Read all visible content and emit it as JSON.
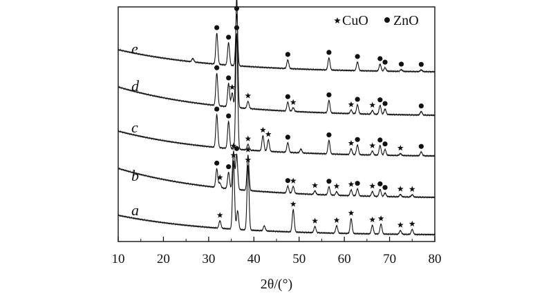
{
  "chart_data": {
    "type": "line",
    "title": "",
    "xlabel": "2θ/(°)",
    "ylabel": "",
    "xlim": [
      10,
      80
    ],
    "x_ticks": [
      10,
      20,
      30,
      40,
      50,
      60,
      70,
      80
    ],
    "grid": false,
    "y_axis_shown": false,
    "legend": {
      "placement": "top-right",
      "entries": [
        {
          "label": "CuO",
          "marker": "star"
        },
        {
          "label": "ZnO",
          "marker": "circle"
        }
      ]
    },
    "series_order_bottom_to_top": [
      "a",
      "b",
      "c",
      "d",
      "e"
    ],
    "series": [
      {
        "name": "a",
        "peaks": [
          {
            "x": 32.5,
            "h": 0.06
          },
          {
            "x": 35.5,
            "h": 0.55
          },
          {
            "x": 36.4,
            "h": 0.15
          },
          {
            "x": 38.7,
            "h": 0.52
          },
          {
            "x": 42.3,
            "h": 0.04
          },
          {
            "x": 48.7,
            "h": 0.18
          },
          {
            "x": 53.5,
            "h": 0.05
          },
          {
            "x": 58.3,
            "h": 0.06
          },
          {
            "x": 61.5,
            "h": 0.12
          },
          {
            "x": 66.2,
            "h": 0.07
          },
          {
            "x": 68.1,
            "h": 0.08
          },
          {
            "x": 72.4,
            "h": 0.03
          },
          {
            "x": 75.0,
            "h": 0.04
          }
        ],
        "markers": [
          {
            "x": 32.5,
            "type": "star"
          },
          {
            "x": 35.5,
            "type": "star"
          },
          {
            "x": 38.7,
            "type": "star"
          },
          {
            "x": 48.7,
            "type": "star"
          },
          {
            "x": 53.5,
            "type": "star"
          },
          {
            "x": 58.3,
            "type": "star"
          },
          {
            "x": 61.5,
            "type": "star"
          },
          {
            "x": 66.2,
            "type": "star"
          },
          {
            "x": 68.1,
            "type": "star"
          },
          {
            "x": 72.4,
            "type": "star"
          },
          {
            "x": 75.0,
            "type": "star"
          }
        ]
      },
      {
        "name": "b",
        "peaks": [
          {
            "x": 31.8,
            "h": 0.16
          },
          {
            "x": 32.5,
            "h": 0.04
          },
          {
            "x": 34.4,
            "h": 0.14
          },
          {
            "x": 35.5,
            "h": 0.32
          },
          {
            "x": 36.2,
            "h": 0.3
          },
          {
            "x": 38.7,
            "h": 0.3
          },
          {
            "x": 47.5,
            "h": 0.06
          },
          {
            "x": 48.7,
            "h": 0.06
          },
          {
            "x": 53.5,
            "h": 0.03
          },
          {
            "x": 56.6,
            "h": 0.07
          },
          {
            "x": 58.3,
            "h": 0.03
          },
          {
            "x": 61.5,
            "h": 0.05
          },
          {
            "x": 62.9,
            "h": 0.06
          },
          {
            "x": 66.2,
            "h": 0.04
          },
          {
            "x": 67.9,
            "h": 0.06
          },
          {
            "x": 69.0,
            "h": 0.03
          },
          {
            "x": 72.4,
            "h": 0.02
          },
          {
            "x": 75.0,
            "h": 0.02
          }
        ],
        "markers": [
          {
            "x": 31.8,
            "type": "circle"
          },
          {
            "x": 32.5,
            "type": "star"
          },
          {
            "x": 34.4,
            "type": "circle"
          },
          {
            "x": 35.5,
            "type": "star"
          },
          {
            "x": 36.2,
            "type": "circle"
          },
          {
            "x": 38.7,
            "type": "star"
          },
          {
            "x": 47.5,
            "type": "circle"
          },
          {
            "x": 48.7,
            "type": "star"
          },
          {
            "x": 53.5,
            "type": "star"
          },
          {
            "x": 56.6,
            "type": "circle"
          },
          {
            "x": 58.3,
            "type": "star"
          },
          {
            "x": 61.5,
            "type": "star"
          },
          {
            "x": 62.9,
            "type": "circle"
          },
          {
            "x": 66.2,
            "type": "star"
          },
          {
            "x": 67.9,
            "type": "circle"
          },
          {
            "x": 69.0,
            "type": "circle"
          },
          {
            "x": 72.4,
            "type": "star"
          },
          {
            "x": 75.0,
            "type": "star"
          }
        ]
      },
      {
        "name": "c",
        "peaks": [
          {
            "x": 31.8,
            "h": 0.17
          },
          {
            "x": 34.4,
            "h": 0.14
          },
          {
            "x": 36.2,
            "h": 0.6
          },
          {
            "x": 38.7,
            "h": 0.03
          },
          {
            "x": 42.0,
            "h": 0.08
          },
          {
            "x": 43.2,
            "h": 0.06
          },
          {
            "x": 47.5,
            "h": 0.05
          },
          {
            "x": 50.4,
            "h": 0.02
          },
          {
            "x": 56.6,
            "h": 0.07
          },
          {
            "x": 61.5,
            "h": 0.03
          },
          {
            "x": 62.9,
            "h": 0.05
          },
          {
            "x": 66.2,
            "h": 0.02
          },
          {
            "x": 67.9,
            "h": 0.05
          },
          {
            "x": 69.0,
            "h": 0.03
          },
          {
            "x": 72.4,
            "h": 0.01
          },
          {
            "x": 77.0,
            "h": 0.02
          }
        ],
        "markers": [
          {
            "x": 31.8,
            "type": "circle"
          },
          {
            "x": 34.4,
            "type": "circle"
          },
          {
            "x": 36.2,
            "type": "circle"
          },
          {
            "x": 38.7,
            "type": "star"
          },
          {
            "x": 42.0,
            "type": "star"
          },
          {
            "x": 43.2,
            "type": "star"
          },
          {
            "x": 47.5,
            "type": "circle"
          },
          {
            "x": 56.6,
            "type": "circle"
          },
          {
            "x": 61.5,
            "type": "star"
          },
          {
            "x": 62.9,
            "type": "circle"
          },
          {
            "x": 66.2,
            "type": "star"
          },
          {
            "x": 67.9,
            "type": "circle"
          },
          {
            "x": 69.0,
            "type": "circle"
          },
          {
            "x": 72.4,
            "type": "star"
          },
          {
            "x": 77.0,
            "type": "circle"
          }
        ]
      },
      {
        "name": "d",
        "peaks": [
          {
            "x": 31.8,
            "h": 0.18
          },
          {
            "x": 34.4,
            "h": 0.13
          },
          {
            "x": 35.2,
            "h": 0.08
          },
          {
            "x": 36.2,
            "h": 0.62
          },
          {
            "x": 38.7,
            "h": 0.04
          },
          {
            "x": 47.5,
            "h": 0.05
          },
          {
            "x": 48.7,
            "h": 0.02
          },
          {
            "x": 56.6,
            "h": 0.07
          },
          {
            "x": 61.5,
            "h": 0.02
          },
          {
            "x": 62.9,
            "h": 0.05
          },
          {
            "x": 66.2,
            "h": 0.02
          },
          {
            "x": 67.9,
            "h": 0.05
          },
          {
            "x": 69.0,
            "h": 0.03
          },
          {
            "x": 77.0,
            "h": 0.02
          }
        ],
        "markers": [
          {
            "x": 31.8,
            "type": "circle"
          },
          {
            "x": 34.4,
            "type": "circle"
          },
          {
            "x": 35.2,
            "type": "star"
          },
          {
            "x": 36.2,
            "type": "circle"
          },
          {
            "x": 38.7,
            "type": "star"
          },
          {
            "x": 47.5,
            "type": "circle"
          },
          {
            "x": 48.7,
            "type": "star"
          },
          {
            "x": 56.6,
            "type": "circle"
          },
          {
            "x": 61.5,
            "type": "star"
          },
          {
            "x": 62.9,
            "type": "circle"
          },
          {
            "x": 66.2,
            "type": "star"
          },
          {
            "x": 67.9,
            "type": "circle"
          },
          {
            "x": 69.0,
            "type": "circle"
          },
          {
            "x": 77.0,
            "type": "circle"
          }
        ]
      },
      {
        "name": "e",
        "peaks": [
          {
            "x": 26.5,
            "h": 0.02
          },
          {
            "x": 31.8,
            "h": 0.18
          },
          {
            "x": 34.4,
            "h": 0.13
          },
          {
            "x": 36.2,
            "h": 0.3
          },
          {
            "x": 47.5,
            "h": 0.05
          },
          {
            "x": 56.6,
            "h": 0.07
          },
          {
            "x": 62.9,
            "h": 0.05
          },
          {
            "x": 67.9,
            "h": 0.04
          },
          {
            "x": 69.0,
            "h": 0.02
          },
          {
            "x": 72.6,
            "h": 0.01
          },
          {
            "x": 77.0,
            "h": 0.01
          }
        ],
        "markers": [
          {
            "x": 31.8,
            "type": "circle"
          },
          {
            "x": 34.4,
            "type": "circle"
          },
          {
            "x": 36.2,
            "type": "circle"
          },
          {
            "x": 47.5,
            "type": "circle"
          },
          {
            "x": 56.6,
            "type": "circle"
          },
          {
            "x": 62.9,
            "type": "circle"
          },
          {
            "x": 67.9,
            "type": "circle"
          },
          {
            "x": 69.0,
            "type": "circle"
          },
          {
            "x": 72.6,
            "type": "circle"
          },
          {
            "x": 77.0,
            "type": "circle"
          }
        ]
      }
    ]
  }
}
